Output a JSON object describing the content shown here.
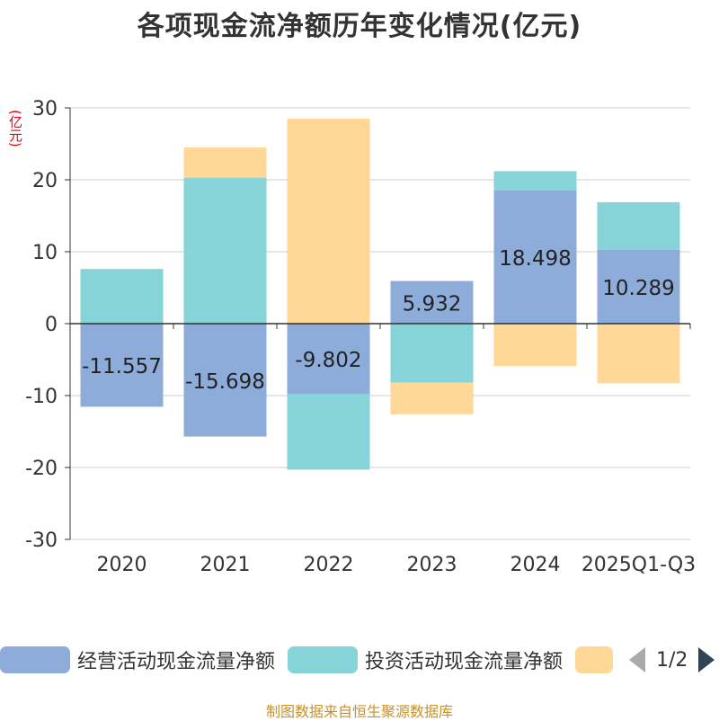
{
  "chart_data": {
    "type": "bar",
    "stacked": true,
    "title": "各项现金流净额历年变化情况(亿元)",
    "ylabel": "(亿元)",
    "ylim": [
      -30,
      30
    ],
    "yticks": [
      30,
      20,
      10,
      0,
      -10,
      -20,
      -30
    ],
    "categories": [
      "2020",
      "2021",
      "2022",
      "2023",
      "2024",
      "2025Q1-Q3"
    ],
    "series": [
      {
        "name": "经营活动现金流量净额",
        "color": "#8eacd9",
        "values": [
          -11.557,
          -15.698,
          -9.802,
          5.932,
          18.498,
          10.289
        ],
        "labeled": true
      },
      {
        "name": "投资活动现金流量净额",
        "color": "#86d4d8",
        "values": [
          7.6,
          20.3,
          -10.5,
          -8.2,
          2.7,
          6.6
        ],
        "labeled": false
      },
      {
        "name": "",
        "color": "#ffd898",
        "values": [
          0,
          4.2,
          28.5,
          -4.4,
          -5.9,
          -8.3
        ],
        "labeled": false
      }
    ],
    "legend_position": "bottom"
  },
  "legend": {
    "page": "1/2"
  },
  "source": "制图数据来自恒生聚源数据库"
}
